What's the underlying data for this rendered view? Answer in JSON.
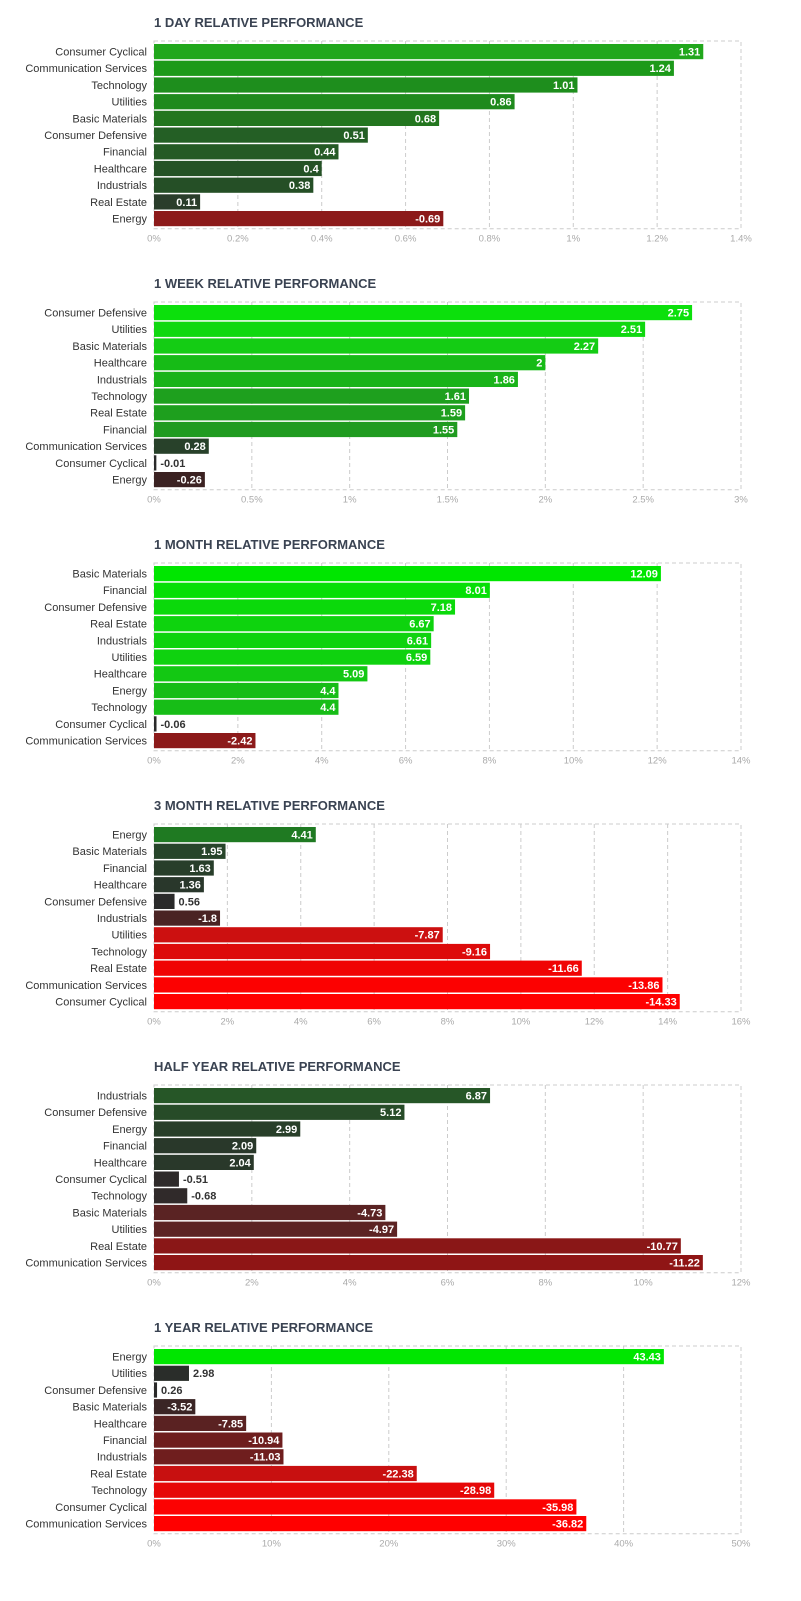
{
  "chart_data": [
    {
      "type": "bar",
      "orientation": "horizontal",
      "title": "1 DAY RELATIVE PERFORMANCE",
      "categories": [
        "Consumer Cyclical",
        "Communication Services",
        "Technology",
        "Utilities",
        "Basic Materials",
        "Consumer Defensive",
        "Financial",
        "Healthcare",
        "Industrials",
        "Real Estate",
        "Energy"
      ],
      "values": [
        1.31,
        1.24,
        1.01,
        0.86,
        0.68,
        0.51,
        0.44,
        0.4,
        0.38,
        0.11,
        -0.69
      ],
      "value_labels": [
        "1.31",
        "1.24",
        "1.01",
        "0.86",
        "0.68",
        "0.51",
        "0.44",
        "0.4",
        "0.38",
        "0.11",
        "-0.69"
      ],
      "xlim": [
        0,
        1.4
      ],
      "ticks": [
        0,
        0.2,
        0.4,
        0.6,
        0.8,
        1.0,
        1.2,
        1.4
      ],
      "tick_labels": [
        "0%",
        "0.2%",
        "0.4%",
        "0.6%",
        "0.8%",
        "1%",
        "1.2%",
        "1.4%"
      ],
      "bar_colors": [
        "#21a71c",
        "#1d9a1a",
        "#1e8e1d",
        "#1f8a1d",
        "#23761f",
        "#245f25",
        "#255a25",
        "#255226",
        "#254f26",
        "#2a3d2b",
        "#8c1a1a"
      ],
      "value_label_colors": [
        "#ffffff",
        "#ffffff",
        "#ffffff",
        "#ffffff",
        "#ffffff",
        "#ffffff",
        "#ffffff",
        "#ffffff",
        "#ffffff",
        "#ffffff",
        "#ffffff"
      ]
    },
    {
      "type": "bar",
      "orientation": "horizontal",
      "title": "1 WEEK RELATIVE PERFORMANCE",
      "categories": [
        "Consumer Defensive",
        "Utilities",
        "Basic Materials",
        "Healthcare",
        "Industrials",
        "Technology",
        "Real Estate",
        "Financial",
        "Communication Services",
        "Consumer Cyclical",
        "Energy"
      ],
      "values": [
        2.75,
        2.51,
        2.27,
        2,
        1.86,
        1.61,
        1.59,
        1.55,
        0.28,
        -0.01,
        -0.26
      ],
      "value_labels": [
        "2.75",
        "2.51",
        "2.27",
        "2",
        "1.86",
        "1.61",
        "1.59",
        "1.55",
        "0.28",
        "-0.01",
        "-0.26"
      ],
      "xlim": [
        0,
        3
      ],
      "ticks": [
        0,
        0.5,
        1,
        1.5,
        2,
        2.5,
        3
      ],
      "tick_labels": [
        "0%",
        "0.5%",
        "1%",
        "1.5%",
        "2%",
        "2.5%",
        "3%"
      ],
      "bar_colors": [
        "#0ce00c",
        "#10d810",
        "#14cc14",
        "#16bb16",
        "#19b319",
        "#1ea01e",
        "#1e9f1e",
        "#209b20",
        "#28412a",
        "#2a2a2a",
        "#3b2222"
      ],
      "value_label_colors": [
        "#ffffff",
        "#ffffff",
        "#ffffff",
        "#ffffff",
        "#ffffff",
        "#ffffff",
        "#ffffff",
        "#ffffff",
        "#ffffff",
        "#333333",
        "#ffffff"
      ]
    },
    {
      "type": "bar",
      "orientation": "horizontal",
      "title": "1 MONTH RELATIVE PERFORMANCE",
      "categories": [
        "Basic Materials",
        "Financial",
        "Consumer Defensive",
        "Real Estate",
        "Industrials",
        "Utilities",
        "Healthcare",
        "Energy",
        "Technology",
        "Consumer Cyclical",
        "Communication Services"
      ],
      "values": [
        12.09,
        8.01,
        7.18,
        6.67,
        6.61,
        6.59,
        5.09,
        4.4,
        4.4,
        -0.06,
        -2.42
      ],
      "value_labels": [
        "12.09",
        "8.01",
        "7.18",
        "6.67",
        "6.61",
        "6.59",
        "5.09",
        "4.4",
        "4.4",
        "-0.06",
        "-2.42"
      ],
      "xlim": [
        0,
        14
      ],
      "ticks": [
        0,
        2,
        4,
        6,
        8,
        10,
        12,
        14
      ],
      "tick_labels": [
        "0%",
        "2%",
        "4%",
        "6%",
        "8%",
        "10%",
        "12%",
        "14%"
      ],
      "bar_colors": [
        "#00e600",
        "#06df06",
        "#0bd90b",
        "#0ed30e",
        "#0ed30e",
        "#0fd20f",
        "#13c813",
        "#17bd17",
        "#17bd17",
        "#2a2a2a",
        "#8c1a1a"
      ],
      "value_label_colors": [
        "#ffffff",
        "#ffffff",
        "#ffffff",
        "#ffffff",
        "#ffffff",
        "#ffffff",
        "#ffffff",
        "#ffffff",
        "#ffffff",
        "#333333",
        "#ffffff"
      ]
    },
    {
      "type": "bar",
      "orientation": "horizontal",
      "title": "3 MONTH RELATIVE PERFORMANCE",
      "categories": [
        "Energy",
        "Basic Materials",
        "Financial",
        "Healthcare",
        "Consumer Defensive",
        "Industrials",
        "Utilities",
        "Technology",
        "Real Estate",
        "Communication Services",
        "Consumer Cyclical"
      ],
      "values": [
        4.41,
        1.95,
        1.63,
        1.36,
        0.56,
        -1.8,
        -7.87,
        -9.16,
        -11.66,
        -13.86,
        -14.33
      ],
      "value_labels": [
        "4.41",
        "1.95",
        "1.63",
        "1.36",
        "0.56",
        "-1.8",
        "-7.87",
        "-9.16",
        "-11.66",
        "-13.86",
        "-14.33"
      ],
      "xlim": [
        0,
        16
      ],
      "ticks": [
        0,
        2,
        4,
        6,
        8,
        10,
        12,
        14,
        16
      ],
      "tick_labels": [
        "0%",
        "2%",
        "4%",
        "6%",
        "8%",
        "10%",
        "12%",
        "14%",
        "16%"
      ],
      "bar_colors": [
        "#1f7a22",
        "#27452a",
        "#283e2a",
        "#29372b",
        "#2a2a2a",
        "#4a2424",
        "#cc1010",
        "#dd0a0a",
        "#f00404",
        "#fc0101",
        "#ff0000"
      ],
      "value_label_colors": [
        "#ffffff",
        "#ffffff",
        "#ffffff",
        "#ffffff",
        "#333333",
        "#ffffff",
        "#ffffff",
        "#ffffff",
        "#ffffff",
        "#ffffff",
        "#ffffff"
      ]
    },
    {
      "type": "bar",
      "orientation": "horizontal",
      "title": "HALF YEAR RELATIVE PERFORMANCE",
      "categories": [
        "Industrials",
        "Consumer Defensive",
        "Energy",
        "Financial",
        "Healthcare",
        "Consumer Cyclical",
        "Technology",
        "Basic Materials",
        "Utilities",
        "Real Estate",
        "Communication Services"
      ],
      "values": [
        6.87,
        5.12,
        2.99,
        2.09,
        2.04,
        -0.51,
        -0.68,
        -4.73,
        -4.97,
        -10.77,
        -11.22
      ],
      "value_labels": [
        "6.87",
        "5.12",
        "2.99",
        "2.09",
        "2.04",
        "-0.51",
        "-0.68",
        "-4.73",
        "-4.97",
        "-10.77",
        "-11.22"
      ],
      "xlim": [
        0,
        12
      ],
      "ticks": [
        0,
        2,
        4,
        6,
        8,
        10,
        12
      ],
      "tick_labels": [
        "0%",
        "2%",
        "4%",
        "6%",
        "8%",
        "10%",
        "12%"
      ],
      "bar_colors": [
        "#265627",
        "#274b28",
        "#283f29",
        "#29382a",
        "#29382a",
        "#2e2a2a",
        "#302a2a",
        "#5a2323",
        "#5c2323",
        "#8a1717",
        "#8f1515"
      ],
      "value_label_colors": [
        "#ffffff",
        "#ffffff",
        "#ffffff",
        "#ffffff",
        "#ffffff",
        "#333333",
        "#333333",
        "#ffffff",
        "#ffffff",
        "#ffffff",
        "#ffffff"
      ]
    },
    {
      "type": "bar",
      "orientation": "horizontal",
      "title": "1 YEAR RELATIVE PERFORMANCE",
      "categories": [
        "Energy",
        "Utilities",
        "Consumer Defensive",
        "Basic Materials",
        "Healthcare",
        "Financial",
        "Industrials",
        "Real Estate",
        "Technology",
        "Consumer Cyclical",
        "Communication Services"
      ],
      "values": [
        43.43,
        2.98,
        0.26,
        -3.52,
        -7.85,
        -10.94,
        -11.03,
        -22.38,
        -28.98,
        -35.98,
        -36.82
      ],
      "value_labels": [
        "43.43",
        "2.98",
        "0.26",
        "-3.52",
        "-7.85",
        "-10.94",
        "-11.03",
        "-22.38",
        "-28.98",
        "-35.98",
        "-36.82"
      ],
      "xlim": [
        0,
        50
      ],
      "ticks": [
        0,
        10,
        20,
        30,
        40,
        50
      ],
      "tick_labels": [
        "0%",
        "10%",
        "20%",
        "30%",
        "40%",
        "50%"
      ],
      "bar_colors": [
        "#00e600",
        "#2a2d2a",
        "#2a2a2a",
        "#3a2525",
        "#5a2222",
        "#6e1e1e",
        "#6f1e1e",
        "#c81010",
        "#e60808",
        "#fc0202",
        "#ff0000"
      ],
      "value_label_colors": [
        "#ffffff",
        "#333333",
        "#333333",
        "#ffffff",
        "#ffffff",
        "#ffffff",
        "#ffffff",
        "#ffffff",
        "#ffffff",
        "#ffffff",
        "#ffffff"
      ]
    }
  ]
}
